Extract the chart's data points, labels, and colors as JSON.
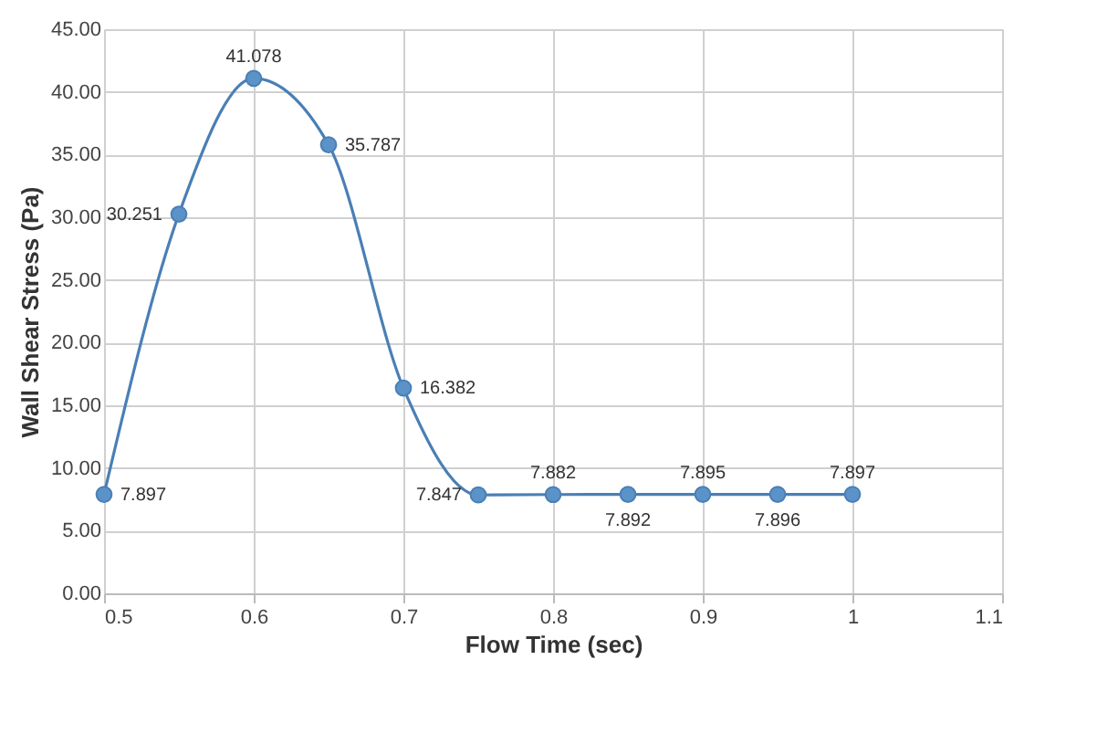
{
  "chart_data": {
    "type": "line",
    "xlabel": "Flow Time (sec)",
    "ylabel": "Wall Shear Stress (Pa)",
    "x": [
      0.5,
      0.55,
      0.6,
      0.65,
      0.7,
      0.75,
      0.8,
      0.85,
      0.9,
      0.95,
      1
    ],
    "series": [
      {
        "color": "#4a7fb5",
        "values": [
          7.897,
          30.251,
          41.078,
          35.787,
          16.382,
          7.847,
          7.882,
          7.892,
          7.895,
          7.896,
          7.897
        ]
      }
    ],
    "xlim": [
      0.5,
      1.1
    ],
    "xticks": [
      0.5,
      0.6,
      0.7,
      0.8,
      0.9,
      1,
      1.1
    ],
    "ylim": [
      0,
      45
    ],
    "yticks": [
      {
        "value": 0,
        "label": "0.00"
      },
      {
        "value": 5,
        "label": "5.00"
      },
      {
        "value": 10,
        "label": "10.00"
      },
      {
        "value": 15,
        "label": "15.00"
      },
      {
        "value": 20,
        "label": "20.00"
      },
      {
        "value": 25,
        "label": "25.00"
      },
      {
        "value": 30,
        "label": "30.00"
      },
      {
        "value": 35,
        "label": "35.00"
      },
      {
        "value": 40,
        "label": "40.00"
      },
      {
        "value": 45,
        "label": "45.00"
      }
    ],
    "grid": true,
    "marker": "circle",
    "line_style": "solid",
    "data_labels": true
  }
}
